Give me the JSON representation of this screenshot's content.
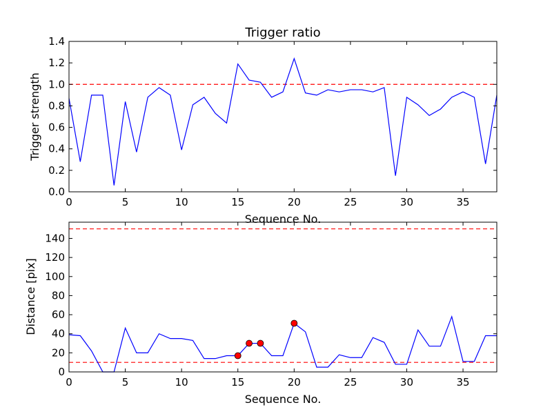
{
  "colors": {
    "series": "#0000ff",
    "threshold": "#ff0000",
    "marker": "#ff0000"
  },
  "chart_data": [
    {
      "type": "line",
      "title": "Trigger ratio",
      "xlabel": "Sequence No.",
      "ylabel": "Trigger strength",
      "xlim": [
        0,
        38
      ],
      "ylim": [
        0,
        1.4
      ],
      "xticks": [
        0,
        5,
        10,
        15,
        20,
        25,
        30,
        35
      ],
      "yticks": [
        0.0,
        0.2,
        0.4,
        0.6,
        0.8,
        1.0,
        1.2,
        1.4
      ],
      "ytick_labels": [
        "0.0",
        "0.2",
        "0.4",
        "0.6",
        "0.8",
        "1.0",
        "1.2",
        "1.4"
      ],
      "x": [
        0,
        1,
        2,
        3,
        4,
        5,
        6,
        7,
        8,
        9,
        10,
        11,
        12,
        13,
        14,
        15,
        16,
        17,
        18,
        19,
        20,
        21,
        22,
        23,
        24,
        25,
        26,
        27,
        28,
        29,
        30,
        31,
        32,
        33,
        34,
        35,
        36,
        37,
        38
      ],
      "y": [
        0.87,
        0.28,
        0.9,
        0.9,
        0.06,
        0.84,
        0.37,
        0.88,
        0.97,
        0.9,
        0.39,
        0.81,
        0.88,
        0.73,
        0.64,
        1.19,
        1.04,
        1.02,
        0.88,
        0.93,
        1.24,
        0.92,
        0.9,
        0.95,
        0.93,
        0.95,
        0.95,
        0.93,
        0.97,
        0.15,
        0.88,
        0.81,
        0.71,
        0.77,
        0.88,
        0.93,
        0.88,
        0.26,
        0.9
      ],
      "threshold_lines": [
        1.0
      ],
      "markers": []
    },
    {
      "type": "line",
      "title": "",
      "xlabel": "Sequence No.",
      "ylabel": "Distance [pix]",
      "xlim": [
        0,
        38
      ],
      "ylim": [
        0,
        157
      ],
      "xticks": [
        0,
        5,
        10,
        15,
        20,
        25,
        30,
        35
      ],
      "yticks": [
        0,
        20,
        40,
        60,
        80,
        100,
        120,
        140
      ],
      "ytick_labels": [
        "0",
        "20",
        "40",
        "60",
        "80",
        "100",
        "120",
        "140"
      ],
      "x": [
        0,
        1,
        2,
        3,
        4,
        5,
        6,
        7,
        8,
        9,
        10,
        11,
        12,
        13,
        14,
        15,
        16,
        17,
        18,
        19,
        20,
        21,
        22,
        23,
        24,
        25,
        26,
        27,
        28,
        29,
        30,
        31,
        32,
        33,
        34,
        35,
        36,
        37,
        38
      ],
      "y": [
        39,
        38,
        22,
        0,
        0,
        46,
        20,
        20,
        40,
        35,
        35,
        33,
        14,
        14,
        17,
        17,
        30,
        30,
        17,
        17,
        51,
        42,
        5,
        5,
        18,
        15,
        15,
        36,
        31,
        8,
        8,
        44,
        27,
        27,
        58,
        11,
        11,
        38,
        38
      ],
      "threshold_lines": [
        150,
        10
      ],
      "markers": [
        {
          "x": 15,
          "y": 17
        },
        {
          "x": 16,
          "y": 30
        },
        {
          "x": 17,
          "y": 30
        },
        {
          "x": 20,
          "y": 51
        }
      ]
    }
  ]
}
